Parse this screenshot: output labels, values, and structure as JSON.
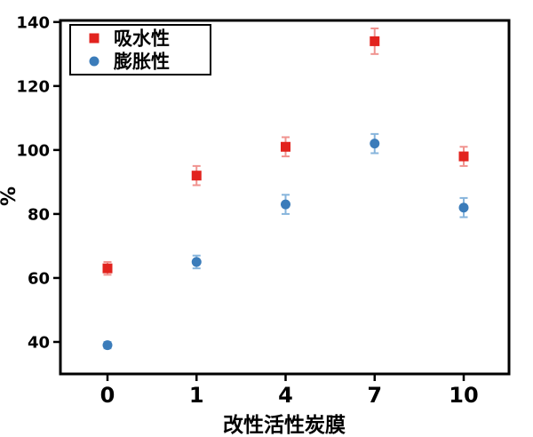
{
  "chart_data": {
    "type": "scatter",
    "title": "",
    "xlabel": "改性活性炭膜",
    "ylabel": "%",
    "categories": [
      "0",
      "1",
      "4",
      "7",
      "10"
    ],
    "y_ticks": [
      40,
      60,
      80,
      100,
      120,
      140
    ],
    "ylim": [
      30,
      140.5
    ],
    "grid": false,
    "legend_position": "upper left",
    "series": [
      {
        "name": "吸水性",
        "marker": "square",
        "color": "#e2231e",
        "error_color": "#f0938f",
        "values": [
          63,
          92,
          101,
          134,
          98
        ],
        "errors": [
          2,
          3,
          3,
          4,
          3
        ]
      },
      {
        "name": "膨胀性",
        "marker": "circle",
        "color": "#3b7cba",
        "error_color": "#87b5dc",
        "values": [
          39,
          65,
          83,
          102,
          82
        ],
        "errors": [
          1,
          2,
          3,
          3,
          3
        ]
      }
    ],
    "axis_color": "#000000",
    "plot_background": "#ffffff",
    "legend_border_color": "#000000",
    "legend_background": "#ffffff"
  }
}
